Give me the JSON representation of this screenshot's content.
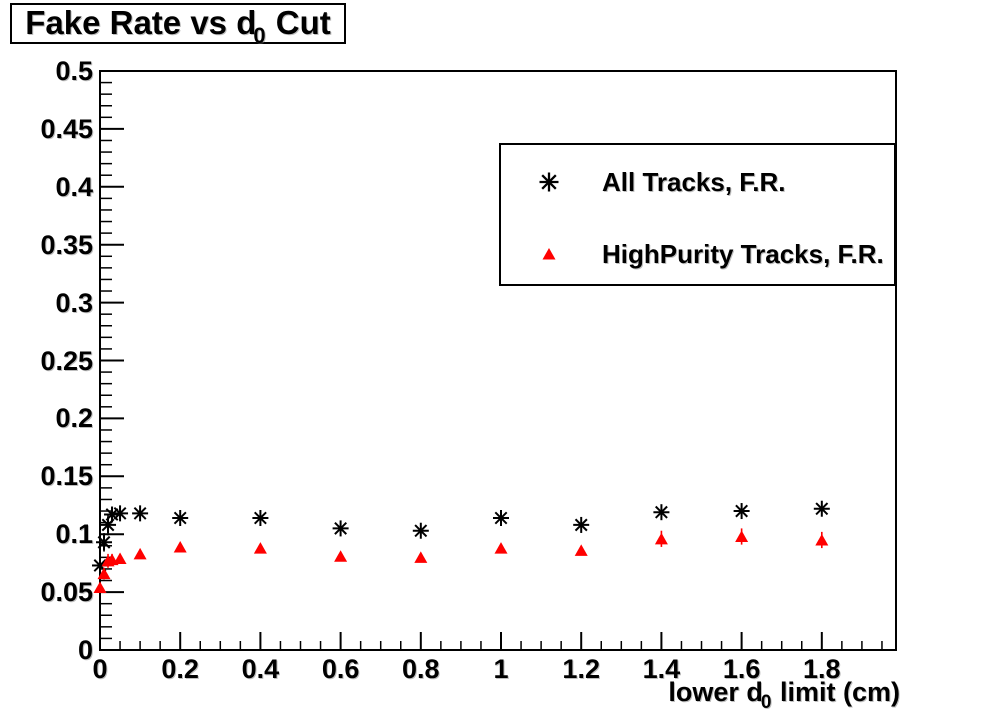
{
  "title": {
    "pre": "Fake Rate vs d",
    "sub": "0",
    "post": " Cut"
  },
  "axes": {
    "x": {
      "title_pre": "lower d",
      "title_sub": "0",
      "title_post": " limit (cm)",
      "lim": [
        0,
        1.985
      ],
      "major_ticks": [
        0,
        0.2,
        0.4,
        0.6,
        0.8,
        1,
        1.2,
        1.4,
        1.6,
        1.8
      ],
      "tick_labels": [
        "0",
        "0.2",
        "0.4",
        "0.6",
        "0.8",
        "1",
        "1.2",
        "1.4",
        "1.6",
        "1.8"
      ],
      "minor_step": 0.05
    },
    "y": {
      "lim": [
        0,
        0.5
      ],
      "major_ticks": [
        0,
        0.05,
        0.1,
        0.15,
        0.2,
        0.25,
        0.3,
        0.35,
        0.4,
        0.45,
        0.5
      ],
      "tick_labels": [
        "0",
        "0.05",
        "0.1",
        "0.15",
        "0.2",
        "0.25",
        "0.3",
        "0.35",
        "0.4",
        "0.45",
        "0.5"
      ],
      "minor_step": 0.01
    }
  },
  "legend": {
    "entries": [
      {
        "label": "All Tracks, F.R.",
        "marker": "star",
        "color": "#000000"
      },
      {
        "label": "HighPurity Tracks, F.R.",
        "marker": "triangle",
        "color": "#ff0000"
      }
    ]
  },
  "chart_data": {
    "type": "scatter",
    "title": "Fake Rate vs d0 Cut",
    "xlabel": "lower d0 limit (cm)",
    "ylabel": "",
    "xlim": [
      0,
      1.985
    ],
    "ylim": [
      0,
      0.5
    ],
    "grid": false,
    "legend_position": "top-right",
    "x": [
      0,
      0.01,
      0.02,
      0.03,
      0.05,
      0.1,
      0.2,
      0.4,
      0.6,
      0.8,
      1,
      1.2,
      1.4,
      1.6,
      1.8
    ],
    "series": [
      {
        "name": "All Tracks, F.R.",
        "marker": "star",
        "color": "#000000",
        "values": [
          0.073,
          0.093,
          0.108,
          0.117,
          0.118,
          0.118,
          0.114,
          0.114,
          0.105,
          0.103,
          0.114,
          0.108,
          0.119,
          0.12,
          0.122
        ],
        "yerr": [
          0.006,
          0.008,
          0.009,
          0.006,
          0.005,
          0.004,
          0.003,
          0.003,
          0.003,
          0.003,
          0.003,
          0.003,
          0.003,
          0.003,
          0.003
        ]
      },
      {
        "name": "HighPurity Tracks, F.R.",
        "marker": "triangle",
        "color": "#ff0000",
        "values": [
          0.054,
          0.066,
          0.077,
          0.078,
          0.079,
          0.083,
          0.089,
          0.088,
          0.081,
          0.08,
          0.088,
          0.086,
          0.096,
          0.098,
          0.095
        ],
        "yerr": [
          0.004,
          0.005,
          0.006,
          0.005,
          0.004,
          0.003,
          0.003,
          0.003,
          0.003,
          0.003,
          0.003,
          0.003,
          0.007,
          0.007,
          0.007
        ]
      }
    ]
  }
}
